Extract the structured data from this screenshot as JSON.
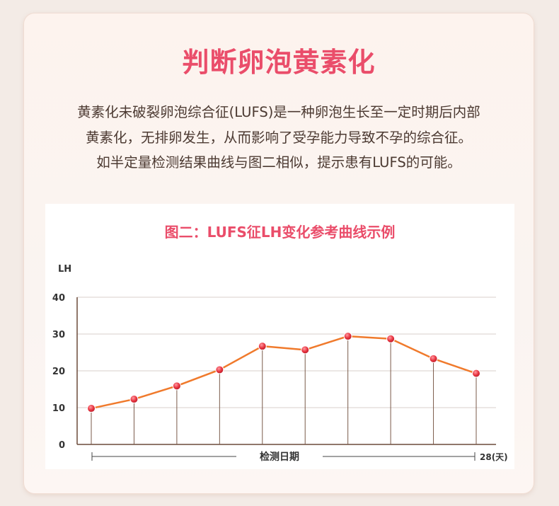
{
  "heading": "判断卵泡黄素化",
  "description": [
    "黄素化未破裂卵泡综合征(LUFS)是一种卵泡生长至一定时期后内部",
    "黄素化，无排卵发生，从而影响了受孕能力导致不孕的综合征。",
    "如半定量检测结果曲线与图二相似，提示患有LUFS的可能。"
  ],
  "colors": {
    "accent": "#ea4d6a",
    "line": "#f07a2c",
    "point": "#e8333f",
    "axis": "#6b4a3a"
  },
  "chart_data": {
    "type": "line",
    "title": "图二：LUFS征LH变化参考曲线示例",
    "ylabel": "LH",
    "xlabel": "检测日期",
    "x_end_label": "28(天)",
    "yticks": [
      0,
      10,
      20,
      30,
      40
    ],
    "ylim": [
      0,
      40
    ],
    "x": [
      1,
      2,
      3,
      4,
      5,
      6,
      7,
      8,
      9,
      10
    ],
    "values": [
      9.8,
      12.3,
      15.9,
      20.3,
      26.7,
      25.7,
      29.4,
      28.7,
      23.3,
      19.3
    ],
    "grid": true
  }
}
